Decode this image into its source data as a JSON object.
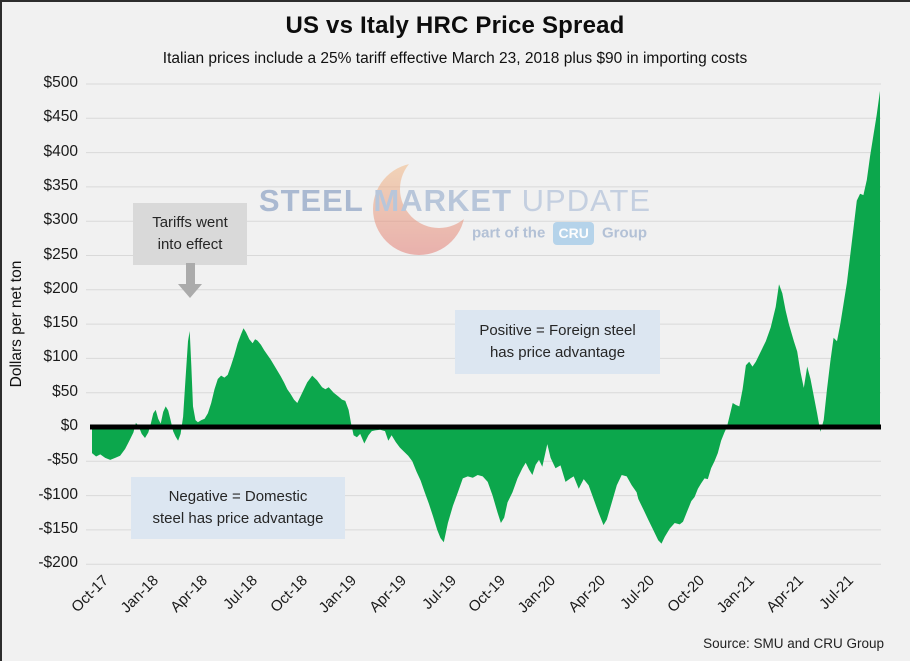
{
  "header": {
    "title": "US vs Italy HRC Price Spread",
    "subtitle": "Italian prices include a 25% tariff effective March 23, 2018 plus $90 in importing costs"
  },
  "footer": {
    "source": "Source: SMU and CRU Group"
  },
  "annotations": {
    "tariff": {
      "line1": "Tariffs went",
      "line2": "into effect"
    },
    "positive": {
      "line1": "Positive = Foreign steel",
      "line2": "has price advantage"
    },
    "negative": {
      "line1": "Negative = Domestic",
      "line2": "steel has price advantage"
    }
  },
  "watermark": {
    "steel": "STEEL",
    "market": "MARKET",
    "update": "UPDATE",
    "part_of_the": "part of the",
    "cru": "CRU",
    "group": "Group"
  },
  "colors": {
    "area_green": "#0CA74C",
    "background": "#F1F1F1",
    "gridline": "#D9D9D9",
    "zero_line": "#000000",
    "note_gray_bg": "#D9D9D9",
    "note_blue_bg": "#DCE6F1",
    "arrow_gray": "#ABABAB",
    "crescent_top": "#f2b77e",
    "crescent_bottom": "#e2726b"
  },
  "chart_data": {
    "type": "area",
    "title": "US vs Italy HRC Price Spread",
    "subtitle": "Italian prices include a 25% tariff effective March 23, 2018 plus $90 in importing costs",
    "xlabel": "",
    "ylabel": "Dollars per net ton",
    "ylim": [
      -200,
      500
    ],
    "y_tick_step": 50,
    "baseline": 0,
    "grid": "horizontal",
    "legend": "none",
    "y_tick_labels": [
      "$500",
      "$450",
      "$400",
      "$350",
      "$300",
      "$250",
      "$200",
      "$150",
      "$100",
      "$50",
      "$0",
      "-$50",
      "-$100",
      "-$150",
      "-$200"
    ],
    "y_tick_values": [
      500,
      450,
      400,
      350,
      300,
      250,
      200,
      150,
      100,
      50,
      0,
      -50,
      -100,
      -150,
      -200
    ],
    "x_tick_labels": [
      "Oct-17",
      "Jan-18",
      "Apr-18",
      "Jul-18",
      "Oct-18",
      "Jan-19",
      "Apr-19",
      "Jul-19",
      "Oct-19",
      "Jan-20",
      "Apr-20",
      "Jul-20",
      "Oct-20",
      "Jan-21",
      "Apr-21",
      "Jul-21"
    ],
    "x_tick_positions_months": [
      0,
      3,
      6,
      9,
      12,
      15,
      18,
      21,
      24,
      27,
      30,
      33,
      36,
      39,
      42,
      45
    ],
    "x_months_span": 47.6,
    "points_unit": "[months since Oct-2017, dollars per net ton]",
    "points": [
      [
        0,
        -38
      ],
      [
        0.25,
        -43
      ],
      [
        0.5,
        -40
      ],
      [
        0.8,
        -45
      ],
      [
        1.1,
        -48
      ],
      [
        1.4,
        -45
      ],
      [
        1.7,
        -42
      ],
      [
        2,
        -32
      ],
      [
        2.3,
        -18
      ],
      [
        2.5,
        -8
      ],
      [
        2.65,
        6
      ],
      [
        2.8,
        2
      ],
      [
        3,
        -10
      ],
      [
        3.2,
        -16
      ],
      [
        3.4,
        -8
      ],
      [
        3.55,
        5
      ],
      [
        3.7,
        20
      ],
      [
        3.85,
        25
      ],
      [
        4,
        12
      ],
      [
        4.15,
        5
      ],
      [
        4.3,
        22
      ],
      [
        4.45,
        30
      ],
      [
        4.6,
        24
      ],
      [
        4.75,
        10
      ],
      [
        4.9,
        -6
      ],
      [
        5.05,
        -14
      ],
      [
        5.2,
        -20
      ],
      [
        5.35,
        -10
      ],
      [
        5.5,
        15
      ],
      [
        5.65,
        70
      ],
      [
        5.8,
        125
      ],
      [
        5.9,
        140
      ],
      [
        6,
        90
      ],
      [
        6.1,
        30
      ],
      [
        6.25,
        10
      ],
      [
        6.4,
        7
      ],
      [
        6.6,
        10
      ],
      [
        6.8,
        12
      ],
      [
        7,
        20
      ],
      [
        7.2,
        35
      ],
      [
        7.4,
        55
      ],
      [
        7.6,
        70
      ],
      [
        7.8,
        75
      ],
      [
        8,
        72
      ],
      [
        8.2,
        76
      ],
      [
        8.4,
        90
      ],
      [
        8.6,
        105
      ],
      [
        8.8,
        122
      ],
      [
        9,
        135
      ],
      [
        9.15,
        144
      ],
      [
        9.3,
        138
      ],
      [
        9.5,
        128
      ],
      [
        9.7,
        122
      ],
      [
        9.85,
        128
      ],
      [
        10,
        126
      ],
      [
        10.2,
        120
      ],
      [
        10.4,
        112
      ],
      [
        10.6,
        105
      ],
      [
        10.8,
        98
      ],
      [
        11,
        90
      ],
      [
        11.2,
        82
      ],
      [
        11.4,
        74
      ],
      [
        11.6,
        65
      ],
      [
        11.8,
        55
      ],
      [
        12,
        48
      ],
      [
        12.2,
        40
      ],
      [
        12.4,
        35
      ],
      [
        12.6,
        45
      ],
      [
        12.8,
        55
      ],
      [
        13,
        65
      ],
      [
        13.3,
        75
      ],
      [
        13.6,
        68
      ],
      [
        13.9,
        58
      ],
      [
        14.1,
        55
      ],
      [
        14.3,
        58
      ],
      [
        14.6,
        50
      ],
      [
        14.9,
        44
      ],
      [
        15.1,
        40
      ],
      [
        15.3,
        38
      ],
      [
        15.5,
        25
      ],
      [
        15.65,
        5
      ],
      [
        15.8,
        -12
      ],
      [
        16,
        -15
      ],
      [
        16.2,
        -10
      ],
      [
        16.45,
        -24
      ],
      [
        16.7,
        -12
      ],
      [
        16.9,
        -6
      ],
      [
        17.1,
        -5
      ],
      [
        17.4,
        -4
      ],
      [
        17.7,
        -6
      ],
      [
        17.9,
        -20
      ],
      [
        18.1,
        -12
      ],
      [
        18.35,
        -22
      ],
      [
        18.6,
        -30
      ],
      [
        18.85,
        -36
      ],
      [
        19.1,
        -42
      ],
      [
        19.35,
        -50
      ],
      [
        19.6,
        -65
      ],
      [
        19.85,
        -78
      ],
      [
        20.1,
        -95
      ],
      [
        20.35,
        -112
      ],
      [
        20.6,
        -130
      ],
      [
        20.85,
        -150
      ],
      [
        21.05,
        -162
      ],
      [
        21.25,
        -168
      ],
      [
        21.5,
        -140
      ],
      [
        21.8,
        -115
      ],
      [
        22.1,
        -95
      ],
      [
        22.4,
        -75
      ],
      [
        22.7,
        -72
      ],
      [
        23,
        -74
      ],
      [
        23.3,
        -70
      ],
      [
        23.6,
        -72
      ],
      [
        23.9,
        -80
      ],
      [
        24.2,
        -100
      ],
      [
        24.5,
        -125
      ],
      [
        24.7,
        -140
      ],
      [
        24.9,
        -132
      ],
      [
        25.1,
        -110
      ],
      [
        25.4,
        -95
      ],
      [
        25.7,
        -75
      ],
      [
        26,
        -60
      ],
      [
        26.2,
        -52
      ],
      [
        26.4,
        -62
      ],
      [
        26.6,
        -70
      ],
      [
        26.8,
        -55
      ],
      [
        27,
        -48
      ],
      [
        27.2,
        -58
      ],
      [
        27.5,
        -25
      ],
      [
        27.7,
        -45
      ],
      [
        28,
        -60
      ],
      [
        28.3,
        -56
      ],
      [
        28.6,
        -80
      ],
      [
        28.9,
        -75
      ],
      [
        29.1,
        -72
      ],
      [
        29.4,
        -90
      ],
      [
        29.7,
        -76
      ],
      [
        30,
        -85
      ],
      [
        30.3,
        -105
      ],
      [
        30.6,
        -125
      ],
      [
        30.9,
        -143
      ],
      [
        31.1,
        -135
      ],
      [
        31.4,
        -110
      ],
      [
        31.7,
        -85
      ],
      [
        32,
        -70
      ],
      [
        32.3,
        -72
      ],
      [
        32.6,
        -85
      ],
      [
        32.9,
        -95
      ],
      [
        33,
        -105
      ],
      [
        33.3,
        -120
      ],
      [
        33.6,
        -135
      ],
      [
        33.9,
        -150
      ],
      [
        34.2,
        -165
      ],
      [
        34.4,
        -170
      ],
      [
        34.6,
        -160
      ],
      [
        34.9,
        -148
      ],
      [
        35.2,
        -140
      ],
      [
        35.5,
        -142
      ],
      [
        35.7,
        -138
      ],
      [
        36,
        -120
      ],
      [
        36.2,
        -108
      ],
      [
        36.4,
        -102
      ],
      [
        36.6,
        -90
      ],
      [
        36.8,
        -82
      ],
      [
        37,
        -75
      ],
      [
        37.2,
        -76
      ],
      [
        37.4,
        -60
      ],
      [
        37.6,
        -50
      ],
      [
        37.8,
        -38
      ],
      [
        38,
        -20
      ],
      [
        38.2,
        -8
      ],
      [
        38.35,
        0
      ],
      [
        38.5,
        15
      ],
      [
        38.7,
        35
      ],
      [
        38.9,
        32
      ],
      [
        39.1,
        30
      ],
      [
        39.3,
        55
      ],
      [
        39.5,
        90
      ],
      [
        39.7,
        95
      ],
      [
        39.9,
        88
      ],
      [
        40.1,
        95
      ],
      [
        40.4,
        110
      ],
      [
        40.7,
        125
      ],
      [
        41,
        145
      ],
      [
        41.3,
        175
      ],
      [
        41.5,
        208
      ],
      [
        41.7,
        195
      ],
      [
        41.9,
        170
      ],
      [
        42.1,
        150
      ],
      [
        42.4,
        125
      ],
      [
        42.6,
        110
      ],
      [
        42.8,
        80
      ],
      [
        43,
        57
      ],
      [
        43.2,
        88
      ],
      [
        43.4,
        70
      ],
      [
        43.6,
        45
      ],
      [
        43.8,
        20
      ],
      [
        44,
        -7
      ],
      [
        44.2,
        10
      ],
      [
        44.4,
        55
      ],
      [
        44.6,
        95
      ],
      [
        44.8,
        130
      ],
      [
        45,
        125
      ],
      [
        45.2,
        150
      ],
      [
        45.4,
        180
      ],
      [
        45.6,
        210
      ],
      [
        45.8,
        250
      ],
      [
        46,
        290
      ],
      [
        46.2,
        330
      ],
      [
        46.4,
        340
      ],
      [
        46.6,
        338
      ],
      [
        46.8,
        360
      ],
      [
        47,
        395
      ],
      [
        47.2,
        425
      ],
      [
        47.4,
        455
      ],
      [
        47.6,
        490
      ]
    ]
  }
}
